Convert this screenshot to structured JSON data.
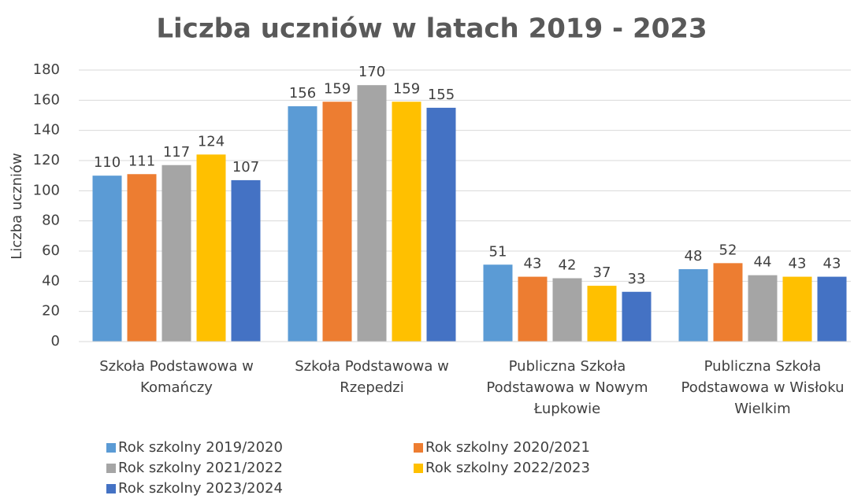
{
  "chart_data": {
    "type": "bar",
    "title": "Liczba uczniów w latach 2019 - 2023",
    "y_label": "Liczba uczniów",
    "categories": [
      "Szkoła Podstawowa w Komańczy",
      "Szkoła Podstawowa w Rzepedzi",
      "Publiczna Szkoła Podstawowa w Nowym Łupkowie",
      "Publiczna Szkoła Podstawowa w Wisłoku Wielkim"
    ],
    "series": [
      {
        "name": "Rok szkolny 2019/2020",
        "color": "#5b9bd5",
        "values": [
          110,
          156,
          51,
          48
        ]
      },
      {
        "name": "Rok szkolny 2020/2021",
        "color": "#ed7d31",
        "values": [
          111,
          159,
          43,
          52
        ]
      },
      {
        "name": "Rok szkolny 2021/2022",
        "color": "#a5a5a5",
        "values": [
          117,
          170,
          42,
          44
        ]
      },
      {
        "name": "Rok szkolny 2022/2023",
        "color": "#ffc000",
        "values": [
          124,
          159,
          37,
          43
        ]
      },
      {
        "name": "Rok szkolny 2023/2024",
        "color": "#4472c4",
        "values": [
          107,
          155,
          33,
          43
        ]
      }
    ],
    "ylim": [
      0,
      180
    ],
    "yticks": [
      0,
      20,
      40,
      60,
      80,
      100,
      120,
      140,
      160,
      180
    ],
    "grid": true,
    "legend": "bottom"
  }
}
